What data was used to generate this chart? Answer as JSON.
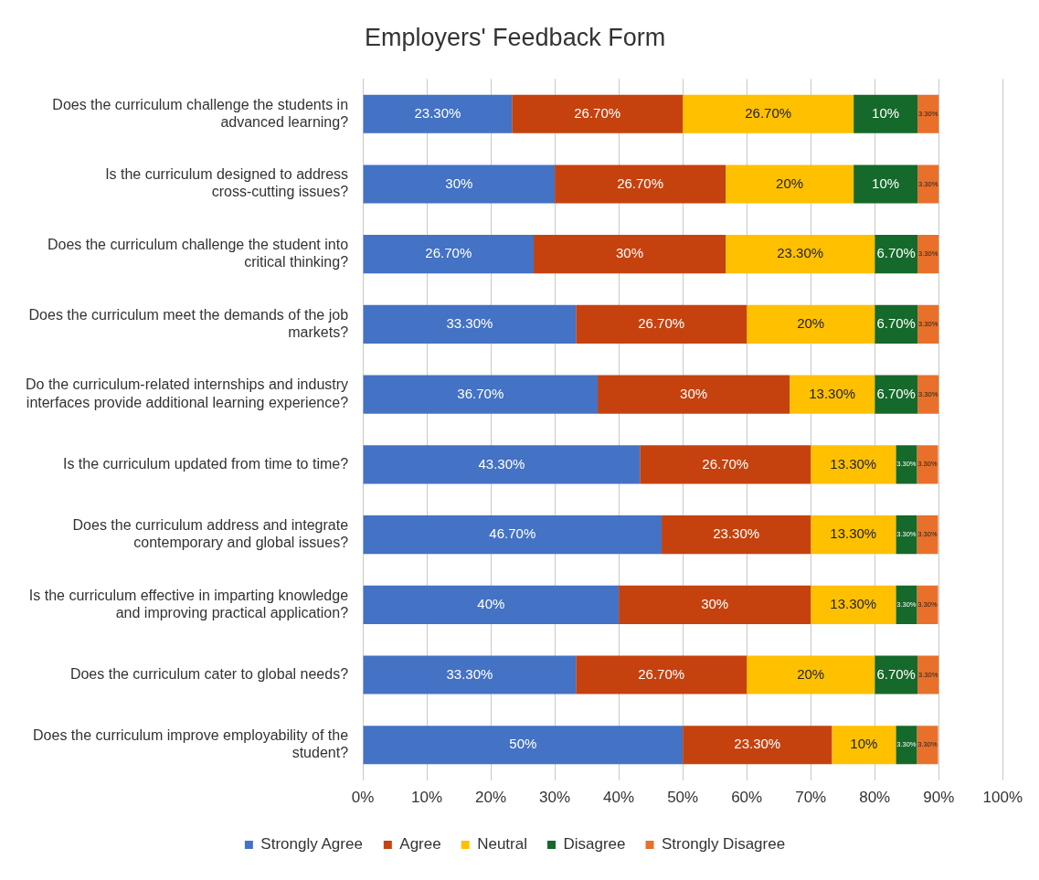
{
  "chart_data": {
    "type": "bar",
    "title": "Employers' Feedback Form",
    "orientation": "horizontal",
    "stacked": true,
    "grid": "x",
    "legend": "bottom",
    "categories": [
      "Does the curriculum challenge the students in advanced learning?",
      "Is the curriculum designed to address cross-cutting issues?",
      "Does the curriculum challenge the student into critical thinking?",
      "Does the curriculum meet the demands of the job markets?",
      "Do the curriculum-related internships and industry interfaces provide additional learning experience?",
      "Is the curriculum updated from time to time?",
      "Does the curriculum address and integrate contemporary and global issues?",
      "Is the curriculum effective in imparting knowledge and improving practical application?",
      "Does the curriculum cater to global needs?",
      "Does the curriculum improve employability of the student?"
    ],
    "xlim": [
      0,
      100
    ],
    "xticks": [
      {
        "value": 0,
        "label": "0%"
      },
      {
        "value": 10,
        "label": "10%"
      },
      {
        "value": 20,
        "label": "20%"
      },
      {
        "value": 30,
        "label": "30%"
      },
      {
        "value": 40,
        "label": "40%"
      },
      {
        "value": 50,
        "label": "50%"
      },
      {
        "value": 60,
        "label": "60%"
      },
      {
        "value": 70,
        "label": "70%"
      },
      {
        "value": 80,
        "label": "80%"
      },
      {
        "value": 90,
        "label": "90%"
      },
      {
        "value": 100,
        "label": "100%"
      }
    ],
    "series": [
      {
        "name": "Strongly Agree",
        "color": "#4472c4",
        "values": [
          23.3,
          30,
          26.7,
          33.3,
          36.7,
          43.3,
          46.7,
          40,
          33.3,
          50
        ],
        "value_labels": [
          "23.30%",
          "30%",
          "26.70%",
          "33.30%",
          "36.70%",
          "43.30%",
          "46.70%",
          "40%",
          "33.30%",
          "50%"
        ]
      },
      {
        "name": "Agree",
        "color": "#c5420f",
        "values": [
          26.7,
          26.7,
          30,
          26.7,
          30,
          26.7,
          23.3,
          30,
          26.7,
          23.3
        ],
        "value_labels": [
          "26.70%",
          "26.70%",
          "30%",
          "26.70%",
          "30%",
          "26.70%",
          "23.30%",
          "30%",
          "26.70%",
          "23.30%"
        ]
      },
      {
        "name": "Neutral",
        "color": "#ffc000",
        "values": [
          26.7,
          20,
          23.3,
          20,
          13.3,
          13.3,
          13.3,
          13.3,
          20,
          10
        ],
        "value_labels": [
          "26.70%",
          "20%",
          "23.30%",
          "20%",
          "13.30%",
          "13.30%",
          "13.30%",
          "13.30%",
          "20%",
          "10%"
        ]
      },
      {
        "name": "Disagree",
        "color": "#15692a",
        "values": [
          10,
          10,
          6.7,
          6.7,
          6.7,
          3.3,
          3.3,
          3.3,
          6.7,
          3.3
        ],
        "value_labels": [
          "10%",
          "10%",
          "6.70%",
          "6.70%",
          "6.70%",
          "3.30%",
          "3.30%",
          "3.30%",
          "6.70%",
          "3.30%"
        ]
      },
      {
        "name": "Strongly Disagree",
        "color": "#e8702a",
        "values": [
          3.3,
          3.3,
          3.3,
          3.3,
          3.3,
          3.3,
          3.3,
          3.3,
          3.3,
          3.3
        ],
        "value_labels": [
          "3.30%",
          "3.30%",
          "3.30%",
          "3.30%",
          "3.30%",
          "3.30%",
          "3.30%",
          "3.30%",
          "3.30%",
          "3.30%"
        ]
      }
    ]
  }
}
